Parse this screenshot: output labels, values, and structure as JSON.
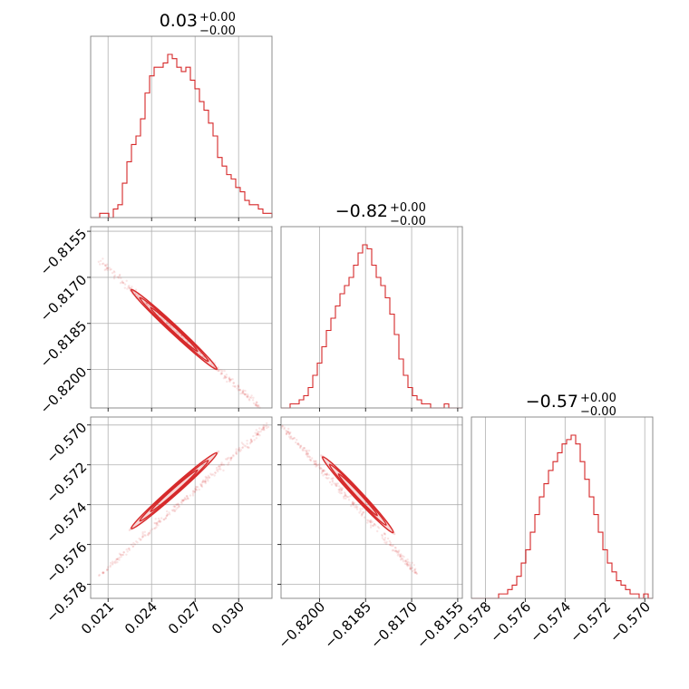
{
  "chart_data": {
    "type": "corner",
    "color": "#d62728",
    "grid": true,
    "parameters": [
      {
        "title_main": "0.03",
        "title_sup": "+0.00",
        "title_sub": "−0.00",
        "range": [
          0.0198,
          0.0323
        ],
        "ticks": [
          0.021,
          0.024,
          0.027,
          0.03
        ],
        "tick_labels": [
          "0.021",
          "0.024",
          "0.027",
          "0.030"
        ]
      },
      {
        "title_main": "−0.82",
        "title_sup": "+0.00",
        "title_sub": "−0.00",
        "range": [
          -0.82125,
          -0.81535
        ],
        "ticks": [
          -0.82,
          -0.8185,
          -0.817,
          -0.8155
        ],
        "tick_labels": [
          "−0.8200",
          "−0.8185",
          "−0.8170",
          "−0.8155"
        ]
      },
      {
        "title_main": "−0.57",
        "title_sup": "+0.00",
        "title_sub": "−0.00",
        "range": [
          -0.5787,
          -0.5696
        ],
        "ticks": [
          -0.578,
          -0.576,
          -0.574,
          -0.572,
          -0.57
        ],
        "tick_labels": [
          "−0.578",
          "−0.576",
          "−0.574",
          "−0.572",
          "−0.570"
        ]
      }
    ],
    "histograms": [
      {
        "parameter": 0,
        "counts": [
          0,
          0,
          1,
          1,
          0,
          2,
          3,
          8,
          13,
          17,
          19,
          23,
          29,
          33,
          35,
          35,
          36,
          38,
          37,
          35,
          34,
          35,
          32,
          30,
          27,
          25,
          22,
          19,
          14,
          12,
          10,
          9,
          7,
          6,
          4,
          3,
          3,
          2,
          1,
          1
        ]
      },
      {
        "parameter": 1,
        "counts": [
          0,
          0,
          1,
          1,
          2,
          3,
          5,
          8,
          11,
          15,
          19,
          22,
          25,
          28,
          30,
          32,
          35,
          38,
          40,
          39,
          35,
          32,
          30,
          27,
          23,
          18,
          12,
          8,
          5,
          3,
          2,
          1,
          1,
          0,
          0,
          0,
          1,
          0,
          0,
          0
        ]
      },
      {
        "parameter": 2,
        "counts": [
          0,
          0,
          0,
          0,
          0,
          0,
          1,
          1,
          2,
          3,
          5,
          8,
          11,
          15,
          19,
          23,
          26,
          29,
          31,
          33,
          35,
          36,
          37,
          35,
          31,
          27,
          23,
          19,
          15,
          11,
          8,
          6,
          4,
          3,
          2,
          1,
          1,
          0,
          1,
          0
        ]
      }
    ],
    "pairs": [
      {
        "x_param": 0,
        "y_param": 1,
        "ellipse_center": [
          0.0256,
          -0.8187
        ],
        "ellipse_ends": [
          [
            0.0226,
            -0.8174
          ],
          [
            0.0285,
            -0.81999
          ]
        ],
        "scatter_extent": [
          [
            0.0205,
            -0.8165
          ],
          [
            0.0315,
            -0.82125
          ]
        ]
      },
      {
        "x_param": 0,
        "y_param": 2,
        "ellipse_center": [
          0.0256,
          -0.5738
        ],
        "ellipse_ends": [
          [
            0.0226,
            -0.5752
          ],
          [
            0.0285,
            -0.5714
          ]
        ],
        "scatter_extent": [
          [
            0.0205,
            -0.5775
          ],
          [
            0.032,
            -0.57
          ]
        ]
      },
      {
        "x_param": 1,
        "y_param": 2,
        "ellipse_center": [
          -0.8187,
          -0.5738
        ],
        "ellipse_ends": [
          [
            -0.8199,
            -0.5716
          ],
          [
            -0.8176,
            -0.5754
          ]
        ],
        "scatter_extent": [
          [
            -0.82125,
            -0.57
          ],
          [
            -0.8168,
            -0.5775
          ]
        ]
      }
    ]
  }
}
